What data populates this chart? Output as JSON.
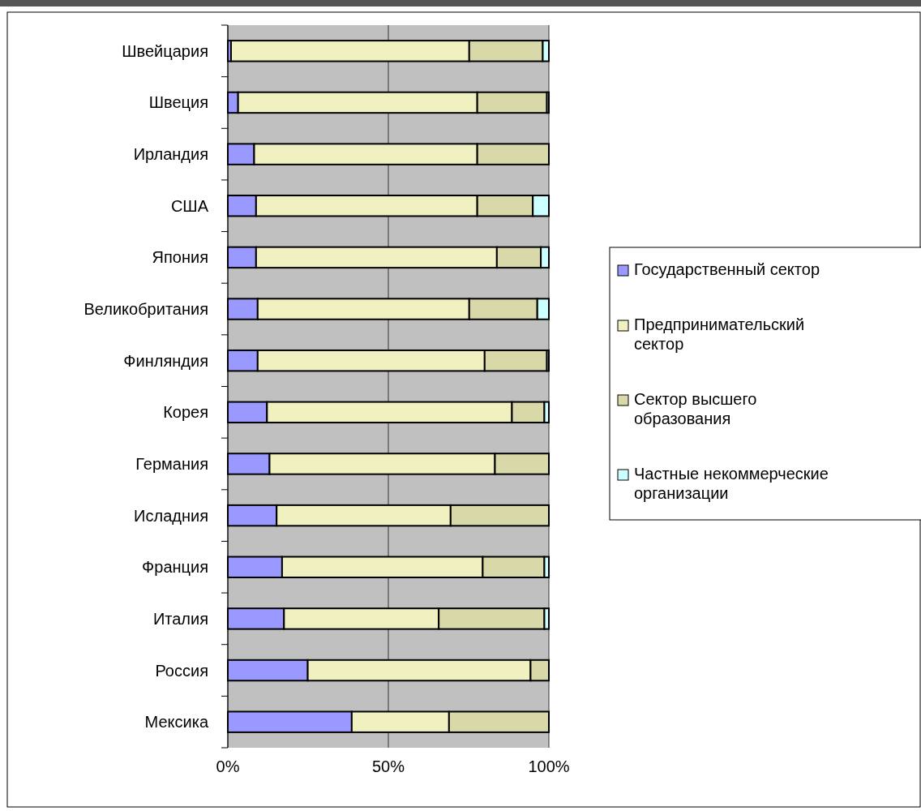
{
  "chart_data": {
    "type": "bar",
    "orientation": "horizontal",
    "stacked": true,
    "categories": [
      "Швейцария",
      "Швеция",
      "Ирландия",
      "США",
      "Япония",
      "Великобритания",
      "Финляндия",
      "Корея",
      "Германия",
      "Исладния",
      "Франция",
      "Италия",
      "Россия",
      "Мексика"
    ],
    "series": [
      {
        "name": "Государственный сектор",
        "color": "#9999ff",
        "values": [
          1,
          3.2,
          8.2,
          8.8,
          8.8,
          9.3,
          9.3,
          12.2,
          13,
          15.2,
          16.9,
          17.5,
          24.9,
          38.6
        ]
      },
      {
        "name": "Предпринимательский сектор",
        "color": "#f0f0c0",
        "values": [
          74.2,
          74.5,
          69.5,
          68.9,
          75,
          65.9,
          70.7,
          76.3,
          70.2,
          54.2,
          62.5,
          48.2,
          69.4,
          30.3
        ]
      },
      {
        "name": "Сектор высшего образования",
        "color": "#d8d8a8",
        "values": [
          22.9,
          21.7,
          22.3,
          17.3,
          13.7,
          21.2,
          19.4,
          10.1,
          16.8,
          30.6,
          19.2,
          32.9,
          5.7,
          31.1
        ]
      },
      {
        "name": "Частные некоммерческие организации",
        "color": "#ccffff",
        "values": [
          1.9,
          0.6,
          0,
          5,
          2.5,
          3.6,
          0.6,
          1.4,
          0,
          0,
          1.4,
          1.4,
          0,
          0
        ]
      }
    ],
    "xlim": [
      0,
      100
    ],
    "xticks": [
      {
        "value": 0,
        "label": "0%"
      },
      {
        "value": 50,
        "label": "50%"
      },
      {
        "value": 100,
        "label": "100%"
      }
    ],
    "grid": "x",
    "legend": "right"
  }
}
